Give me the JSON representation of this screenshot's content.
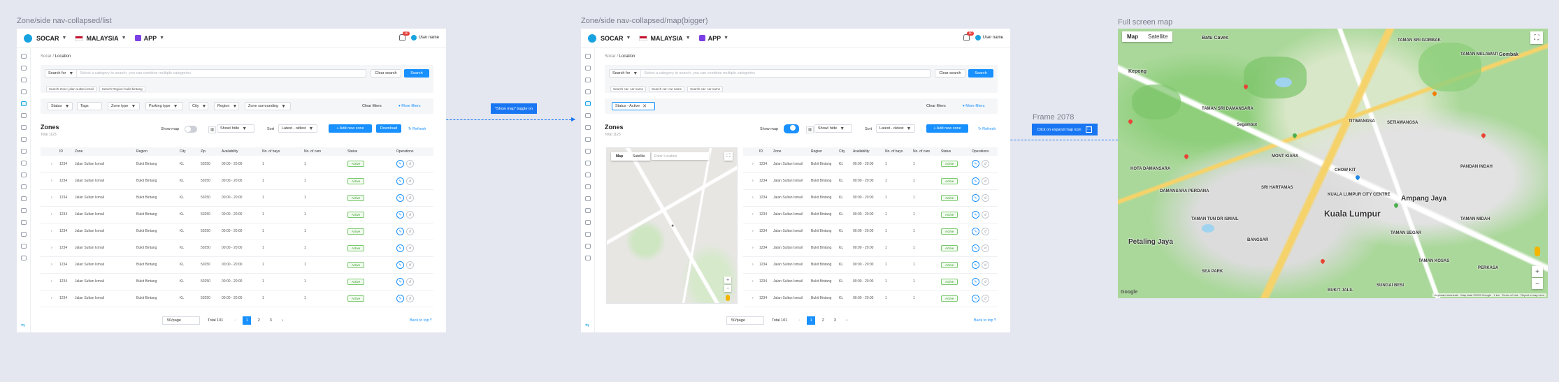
{
  "frames": {
    "list": "Zone/side nav-collapsed/list",
    "map": "Zone/side nav-collapsed/map(bigger)",
    "full": "Full screen map",
    "frame2078": "Frame 2078"
  },
  "topbar": {
    "brand": "SOCAR",
    "country": "MALAYSIA",
    "app": "APP",
    "notif": "10",
    "user": "User name"
  },
  "breadcrumb": {
    "root": "Socar",
    "sep": "/",
    "current": "Location"
  },
  "search": {
    "for": "Search for",
    "placeholder": "Select a category to search, you can combine multiple categories",
    "clear": "Clear search",
    "btn": "Search"
  },
  "chips_list": [
    "Search Zone: jalan sultan ismail",
    "Search Region: bukit bintang"
  ],
  "chips_map": [
    "Search car: car name",
    "Search car: car name",
    "Search car: car name"
  ],
  "filters": {
    "status": "Status",
    "tags": "Tags",
    "zone_type": "Zone type",
    "parking": "Parking type",
    "city": "City",
    "region": "Region",
    "surround": "Zone surrounding",
    "status_active": "Status - Active",
    "clear": "Clear filters",
    "more": "More filters"
  },
  "zones": {
    "title": "Zones",
    "total": "Total 1123",
    "show_map": "Show map",
    "show_hide": "Show/ hide",
    "sort": "Sort",
    "sort_val": "Latest - oldest",
    "add": "+ Add new zone",
    "download": "Download",
    "refresh": "Refresh"
  },
  "columns": [
    "ID",
    "Zone",
    "Region",
    "City",
    "Zip",
    "Availability",
    "No. of bays",
    "No. of cars",
    "Status",
    "Operations"
  ],
  "columns_map": [
    "ID",
    "Zone",
    "Region",
    "City",
    "Availability",
    "No. of bays",
    "No. of cars",
    "Status",
    "Operations"
  ],
  "row": {
    "id": "1234",
    "zone": "Jalan Sultan Ismail",
    "region": "Bukit Bintang",
    "city": "KL",
    "zip": "50250",
    "avail": "00:00 - 20:00",
    "bays": "1",
    "cars": "1",
    "status": "Active"
  },
  "pagination": {
    "per": "50/page",
    "total": "Total 101",
    "pages": [
      "1",
      "2",
      "3"
    ],
    "back": "Back to top"
  },
  "annotations": {
    "toggle": "\"Show map\" toggle on",
    "expand": "Click on expand map icon"
  },
  "map_small": {
    "map": "Map",
    "sat": "Satellite",
    "search": "Enter Location"
  },
  "fullmap": {
    "map": "Map",
    "sat": "Satellite",
    "labels": [
      "Batu Caves",
      "TAMAN SRI GOMBAK",
      "Gombak",
      "TAMAN MELAWATI",
      "Kepong",
      "TAMAN SRI DAMANSARA",
      "Segambut",
      "SETIAWANGSA",
      "KOTA DAMANSARA",
      "DAMANSARA PERDANA",
      "MONT KIARA",
      "SRI HARTAMAS",
      "CHOW KIT",
      "TITIWANGSA",
      "KUALA LUMPUR CITY CENTRE",
      "Kuala Lumpur",
      "Ampang Jaya",
      "Petaling Jaya",
      "BANGSAR",
      "SEA PARK",
      "TAMAN SEGAR",
      "TAMAN MIDAH",
      "PERKASA",
      "BUKIT JALIL",
      "SUNGAI BESI",
      "PANDAN INDAH",
      "TAMAN TUN DR ISMAIL",
      "TAMAN KOSAS"
    ],
    "footer": "Keyboard shortcuts   Map data ©2023 Google   1 km   Terms of Use   Report a map error",
    "google": "Google"
  },
  "colors": {
    "primary": "#1890ff",
    "active": "#3a9d2c",
    "bg": "#e4e7ef"
  }
}
